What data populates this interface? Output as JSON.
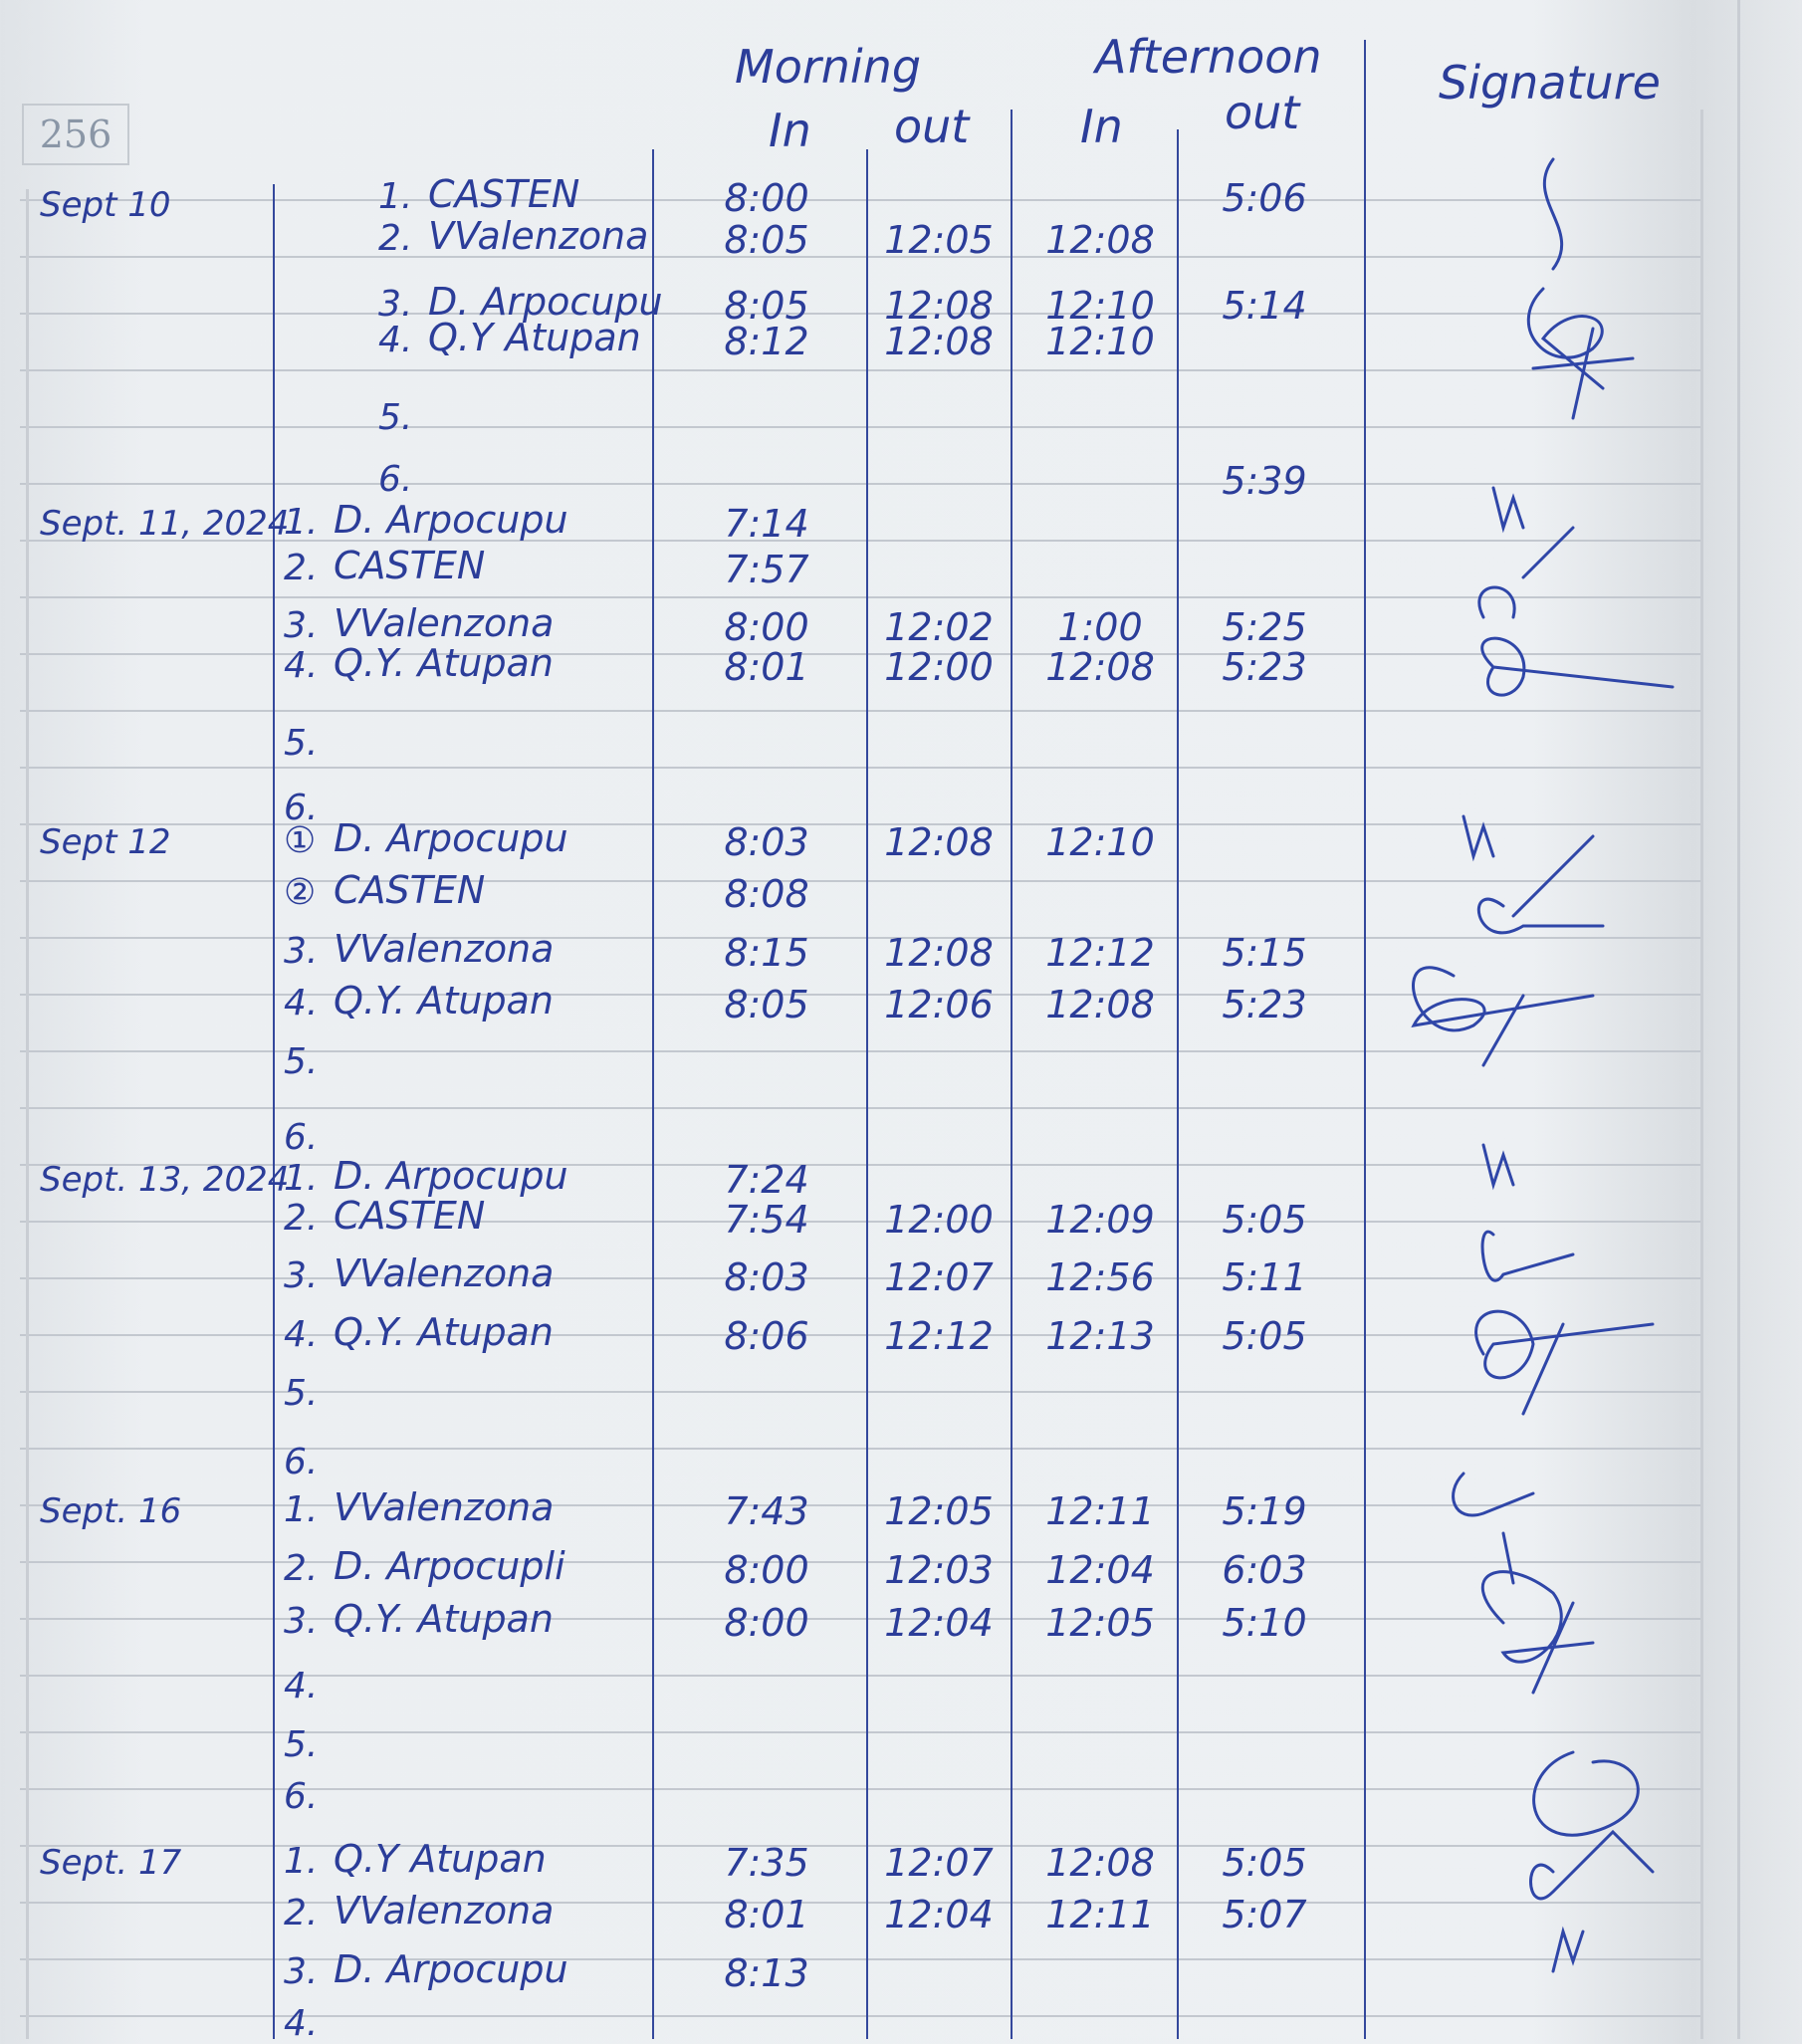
{
  "page_number": "256",
  "header": {
    "morning": "Morning",
    "afternoon": "Afternoon",
    "signature": "Signature",
    "morning_in": "In",
    "morning_out": "out",
    "afternoon_in": "In",
    "afternoon_out": "out"
  },
  "entries": [
    {
      "date": "Sept 10",
      "rows": [
        {
          "no": "1.",
          "name": "CASTEN",
          "m_in": "8:00",
          "m_out": "",
          "a_in": "",
          "a_out": "5:06"
        },
        {
          "no": "2.",
          "name": "VValenzona",
          "m_in": "8:05",
          "m_out": "12:05",
          "a_in": "12:08",
          "a_out": ""
        },
        {
          "no": "3.",
          "name": "D. Arpocupu",
          "m_in": "8:05",
          "m_out": "12:08",
          "a_in": "12:10",
          "a_out": "5:14"
        },
        {
          "no": "4.",
          "name": "Q.Y Atupan",
          "m_in": "8:12",
          "m_out": "12:08",
          "a_in": "12:10",
          "a_out": ""
        },
        {
          "no": "5.",
          "name": "",
          "m_in": "",
          "m_out": "",
          "a_in": "",
          "a_out": ""
        },
        {
          "no": "6.",
          "name": "",
          "m_in": "",
          "m_out": "",
          "a_in": "",
          "a_out": "5:39"
        }
      ]
    },
    {
      "date": "Sept. 11, 2024",
      "rows": [
        {
          "no": "1.",
          "name": "D. Arpocupu",
          "m_in": "7:14",
          "m_out": "",
          "a_in": "",
          "a_out": ""
        },
        {
          "no": "2.",
          "name": "CASTEN",
          "m_in": "7:57",
          "m_out": "",
          "a_in": "",
          "a_out": ""
        },
        {
          "no": "3.",
          "name": "VValenzona",
          "m_in": "8:00",
          "m_out": "12:02",
          "a_in": "1:00",
          "a_out": "5:25"
        },
        {
          "no": "4.",
          "name": "Q.Y. Atupan",
          "m_in": "8:01",
          "m_out": "12:00",
          "a_in": "12:08",
          "a_out": "5:23"
        },
        {
          "no": "5.",
          "name": "",
          "m_in": "",
          "m_out": "",
          "a_in": "",
          "a_out": ""
        },
        {
          "no": "6.",
          "name": "",
          "m_in": "",
          "m_out": "",
          "a_in": "",
          "a_out": ""
        }
      ]
    },
    {
      "date": "Sept 12",
      "rows": [
        {
          "no": "①",
          "name": "D. Arpocupu",
          "m_in": "8:03",
          "m_out": "12:08",
          "a_in": "12:10",
          "a_out": ""
        },
        {
          "no": "②",
          "name": "CASTEN",
          "m_in": "8:08",
          "m_out": "",
          "a_in": "",
          "a_out": ""
        },
        {
          "no": "3.",
          "name": "VValenzona",
          "m_in": "8:15",
          "m_out": "12:08",
          "a_in": "12:12",
          "a_out": "5:15"
        },
        {
          "no": "4.",
          "name": "Q.Y. Atupan",
          "m_in": "8:05",
          "m_out": "12:06",
          "a_in": "12:08",
          "a_out": "5:23"
        },
        {
          "no": "5.",
          "name": "",
          "m_in": "",
          "m_out": "",
          "a_in": "",
          "a_out": ""
        },
        {
          "no": "6.",
          "name": "",
          "m_in": "",
          "m_out": "",
          "a_in": "",
          "a_out": ""
        }
      ]
    },
    {
      "date": "Sept. 13, 2024",
      "rows": [
        {
          "no": "1.",
          "name": "D. Arpocupu",
          "m_in": "7:24",
          "m_out": "",
          "a_in": "",
          "a_out": ""
        },
        {
          "no": "2.",
          "name": "CASTEN",
          "m_in": "7:54",
          "m_out": "12:00",
          "a_in": "12:09",
          "a_out": "5:05"
        },
        {
          "no": "3.",
          "name": "VValenzona",
          "m_in": "8:03",
          "m_out": "12:07",
          "a_in": "12:56",
          "a_out": "5:11"
        },
        {
          "no": "4.",
          "name": "Q.Y. Atupan",
          "m_in": "8:06",
          "m_out": "12:12",
          "a_in": "12:13",
          "a_out": "5:05"
        },
        {
          "no": "5.",
          "name": "",
          "m_in": "",
          "m_out": "",
          "a_in": "",
          "a_out": ""
        },
        {
          "no": "6.",
          "name": "",
          "m_in": "",
          "m_out": "",
          "a_in": "",
          "a_out": ""
        }
      ]
    },
    {
      "date": "Sept. 16",
      "rows": [
        {
          "no": "1.",
          "name": "VValenzona",
          "m_in": "7:43",
          "m_out": "12:05",
          "a_in": "12:11",
          "a_out": "5:19"
        },
        {
          "no": "2.",
          "name": "D. Arpocupli",
          "m_in": "8:00",
          "m_out": "12:03",
          "a_in": "12:04",
          "a_out": "6:03"
        },
        {
          "no": "3.",
          "name": "Q.Y. Atupan",
          "m_in": "8:00",
          "m_out": "12:04",
          "a_in": "12:05",
          "a_out": "5:10"
        },
        {
          "no": "4.",
          "name": "",
          "m_in": "",
          "m_out": "",
          "a_in": "",
          "a_out": ""
        },
        {
          "no": "5.",
          "name": "",
          "m_in": "",
          "m_out": "",
          "a_in": "",
          "a_out": ""
        },
        {
          "no": "6.",
          "name": "",
          "m_in": "",
          "m_out": "",
          "a_in": "",
          "a_out": ""
        }
      ]
    },
    {
      "date": "Sept. 17",
      "rows": [
        {
          "no": "1.",
          "name": "Q.Y Atupan",
          "m_in": "7:35",
          "m_out": "12:07",
          "a_in": "12:08",
          "a_out": "5:05"
        },
        {
          "no": "2.",
          "name": "VValenzona",
          "m_in": "8:01",
          "m_out": "12:04",
          "a_in": "12:11",
          "a_out": "5:07"
        },
        {
          "no": "3.",
          "name": "D. Arpocupu",
          "m_in": "8:13",
          "m_out": "",
          "a_in": "",
          "a_out": ""
        },
        {
          "no": "4.",
          "name": "",
          "m_in": "",
          "m_out": "",
          "a_in": "",
          "a_out": ""
        }
      ]
    }
  ],
  "colors": {
    "ink": "#2b3d99",
    "rule": "#c3c8cf",
    "paper": "#edf0f3"
  }
}
